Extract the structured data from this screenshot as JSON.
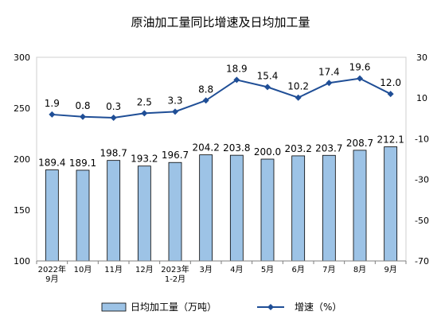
{
  "chart_data": {
    "type": "bar",
    "title": "原油加工量同比增速及日均加工量",
    "categories": [
      [
        "2022年",
        "9月"
      ],
      [
        "10月"
      ],
      [
        "11月"
      ],
      [
        "12月"
      ],
      [
        "2023年",
        "1-2月"
      ],
      [
        "3月"
      ],
      [
        "4月"
      ],
      [
        "5月"
      ],
      [
        "6月"
      ],
      [
        "7月"
      ],
      [
        "8月"
      ],
      [
        "9月"
      ]
    ],
    "series": [
      {
        "name": "日均加工量（万吨）",
        "kind": "bar",
        "axis": "left",
        "color": "#9dc3e6",
        "values": [
          189.4,
          189.1,
          198.7,
          193.2,
          196.7,
          204.2,
          203.8,
          200.0,
          203.2,
          203.7,
          208.7,
          212.1
        ],
        "labels": [
          "189.4",
          "189.1",
          "198.7",
          "193.2",
          "196.7",
          "204.2",
          "203.8",
          "200.0",
          "203.2",
          "203.7",
          "208.7",
          "212.1"
        ]
      },
      {
        "name": "增速（%）",
        "kind": "line",
        "axis": "right",
        "color": "#1f4e96",
        "values": [
          1.9,
          0.8,
          0.3,
          2.5,
          3.3,
          8.8,
          18.9,
          15.4,
          10.2,
          17.4,
          19.6,
          12.0
        ],
        "labels": [
          "1.9",
          "0.8",
          "0.3",
          "2.5",
          "3.3",
          "8.8",
          "18.9",
          "15.4",
          "10.2",
          "17.4",
          "19.6",
          "12.0"
        ]
      }
    ],
    "y_left": {
      "min": 100,
      "max": 300,
      "ticks": [
        "100",
        "150",
        "200",
        "250",
        "300"
      ]
    },
    "y_right": {
      "min": -70,
      "max": 30,
      "ticks": [
        "-70",
        "-50",
        "-30",
        "-10",
        "10",
        "30"
      ]
    },
    "grid": false,
    "legend_position": "bottom"
  }
}
